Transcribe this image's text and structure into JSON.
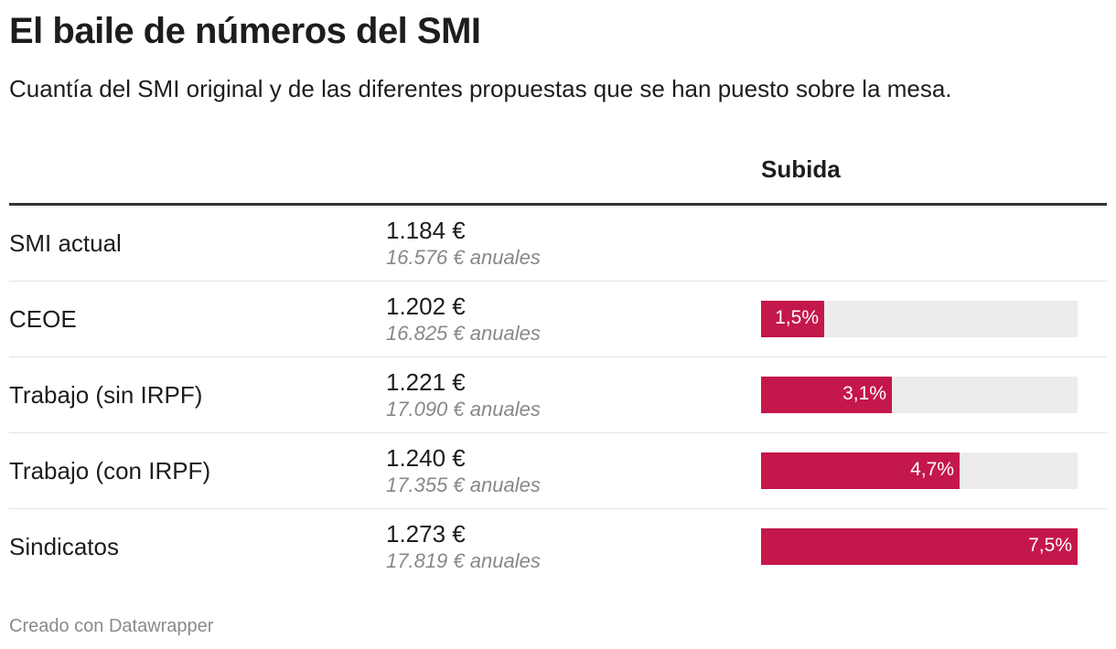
{
  "title": "El baile de números del SMI",
  "subtitle": "Cuantía del SMI original y de las diferentes propuestas que se han puesto sobre la mesa.",
  "column_header": "Subida",
  "footer": "Creado con Datawrapper",
  "colors": {
    "bar": "#c4174b",
    "track": "#ececec"
  },
  "chart_data": {
    "type": "table",
    "bar_max": 7.5,
    "columns": [
      "",
      "",
      "Subida"
    ],
    "rows": [
      {
        "label": "SMI actual",
        "monthly": "1.184 €",
        "annual": "16.576 € anuales",
        "increase": null,
        "increase_label": ""
      },
      {
        "label": "CEOE",
        "monthly": "1.202 €",
        "annual": "16.825 € anuales",
        "increase": 1.5,
        "increase_label": "1,5%"
      },
      {
        "label": "Trabajo (sin IRPF)",
        "monthly": "1.221 €",
        "annual": "17.090 € anuales",
        "increase": 3.1,
        "increase_label": "3,1%"
      },
      {
        "label": "Trabajo (con IRPF)",
        "monthly": "1.240 €",
        "annual": "17.355 € anuales",
        "increase": 4.7,
        "increase_label": "4,7%"
      },
      {
        "label": "Sindicatos",
        "monthly": "1.273 €",
        "annual": "17.819 € anuales",
        "increase": 7.5,
        "increase_label": "7,5%"
      }
    ]
  }
}
